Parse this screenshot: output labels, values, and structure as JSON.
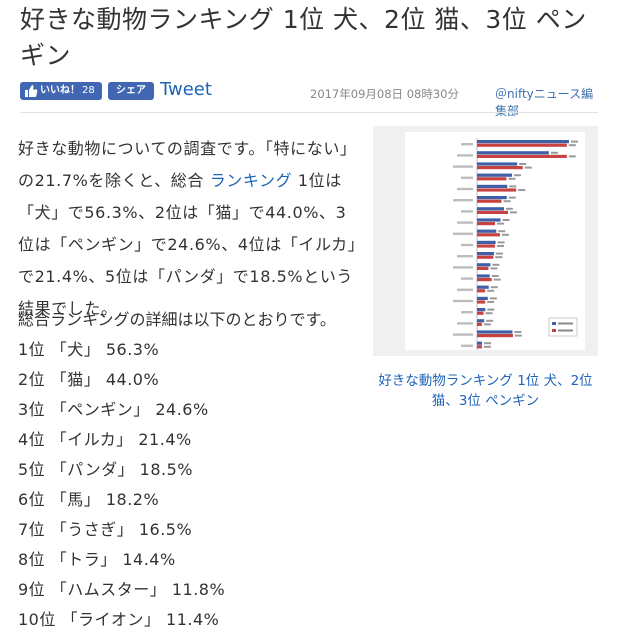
{
  "article": {
    "title": "好きな動物ランキング 1位 犬、2位 猫、3位 ペンギン",
    "date": "2017年09月08日 08時30分",
    "author": "＠niftyニュース編集部"
  },
  "share": {
    "like_label": "いいね！",
    "like_count": "28",
    "share_label": "シェア",
    "tweet_label": "Tweet"
  },
  "intro": {
    "text_before_link": "好きな動物についての調査です。「特にない」の21.7%を除くと、総合 ",
    "link_text": "ランキング",
    "text_after_link": " 1位は「犬」で56.3%、2位は「猫」で44.0%、3位は「ペンギン」で24.6%、4位は「イルカ」で21.4%、5位は「パンダ」で18.5%という結果でした。"
  },
  "ranking_heading": "総合ランキングの詳細は以下のとおりです。",
  "ranking": [
    "1位 「犬」 56.3%",
    "2位 「猫」 44.0%",
    "3位 「ペンギン」 24.6%",
    "4位 「イルカ」 21.4%",
    "5位 「パンダ」 18.5%",
    "6位 「馬」 18.2%",
    "7位 「うさぎ」 16.5%",
    "8位 「トラ」 14.4%",
    "9位 「ハムスター」 11.8%",
    "10位 「ライオン」 11.4%"
  ],
  "figure": {
    "caption": "好きな動物ランキング 1位 犬、2位 猫、3位 ペンギン"
  },
  "chart_data": {
    "type": "bar",
    "orientation": "horizontal",
    "series": [
      {
        "color": "#3f5fa8",
        "values": [
          56.3,
          44.0,
          24.6,
          21.4,
          18.5,
          18.2,
          16.5,
          14.4,
          11.8,
          11.4,
          10.4,
          8.2,
          7.8,
          7.2,
          6.6,
          5.1,
          4.4,
          21.7,
          3.1
        ]
      },
      {
        "color": "#c8423f",
        "values": [
          55.0,
          55.0,
          28.0,
          18.0,
          24.0,
          15.0,
          19.0,
          11.0,
          14.0,
          11.0,
          10.0,
          7.0,
          9.0,
          5.0,
          5.0,
          4.0,
          3.0,
          22.0,
          3.0
        ]
      }
    ],
    "xlim": [
      0,
      60
    ],
    "legend_position": "bottom-right",
    "grid": false
  },
  "colors": {
    "link": "#1d64b8",
    "facebook": "#4267b2",
    "text": "#333333",
    "meta": "#888888"
  }
}
